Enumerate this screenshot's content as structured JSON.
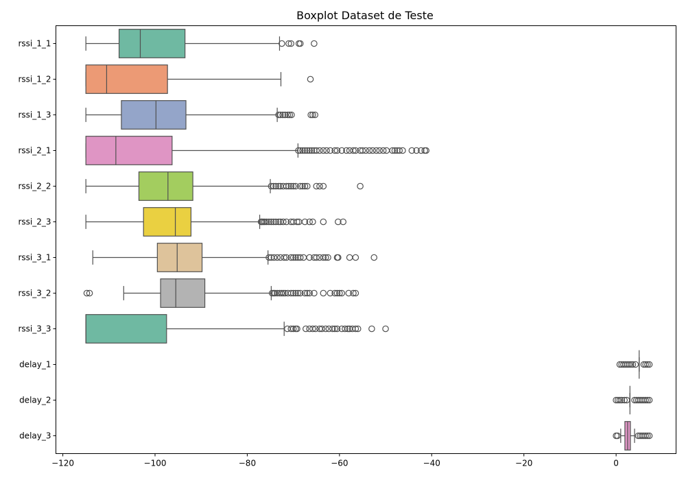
{
  "chart_data": {
    "type": "boxplot",
    "orientation": "horizontal",
    "title": "Boxplot Dataset de Teste",
    "xlabel": "",
    "ylabel": "",
    "xlim": [
      -121.5,
      13
    ],
    "xticks": [
      -120,
      -100,
      -80,
      -60,
      -40,
      -20,
      0
    ],
    "xtick_labels": [
      "−120",
      "−100",
      "−80",
      "−60",
      "−40",
      "−20",
      "0"
    ],
    "grid": false,
    "categories": [
      "rssi_1_1",
      "rssi_1_2",
      "rssi_1_3",
      "rssi_2_1",
      "rssi_2_2",
      "rssi_2_3",
      "rssi_3_1",
      "rssi_3_2",
      "rssi_3_3",
      "delay_1",
      "delay_2",
      "delay_3"
    ],
    "boxes": [
      {
        "name": "rssi_1_1",
        "color": "#6fb9a2",
        "wl": -115,
        "q1": -107.8,
        "med": -103.2,
        "q3": -93.5,
        "wh": -73,
        "fliers": [
          -72.5,
          -71,
          -70.5,
          -68.8,
          -68.5,
          -65.5
        ]
      },
      {
        "name": "rssi_1_2",
        "color": "#ec9a75",
        "wl": -115,
        "q1": -115,
        "med": -110.5,
        "q3": -97.3,
        "wh": -72.7,
        "fliers": [
          -66.3
        ]
      },
      {
        "name": "rssi_1_3",
        "color": "#94a5c9",
        "wl": -115,
        "q1": -107.3,
        "med": -99.8,
        "q3": -93.3,
        "wh": -73.5,
        "fliers": [
          -73.2,
          -72.8,
          -72.3,
          -71.8,
          -71.2,
          -70.8,
          -70.4,
          -66.2,
          -65.8,
          -65.3
        ]
      },
      {
        "name": "rssi_2_1",
        "color": "#df95c4",
        "wl": -115,
        "q1": -115,
        "med": -108.5,
        "q3": -96.3,
        "wh": -69,
        "fliers": [
          -68.9,
          -68.5,
          -68,
          -67.5,
          -67,
          -66.5,
          -66,
          -65.5,
          -65,
          -64.3,
          -63.5,
          -62.8,
          -62,
          -61,
          -60.5,
          -59.5,
          -58.5,
          -57.8,
          -57,
          -56.5,
          -55.5,
          -55,
          -54.3,
          -53.5,
          -52.8,
          -52,
          -51.3,
          -50.5,
          -49.8,
          -48.5,
          -48,
          -47.5,
          -47,
          -46.3,
          -44.3,
          -43.3,
          -42.3,
          -41.5,
          -41.2
        ]
      },
      {
        "name": "rssi_2_2",
        "color": "#a3cd5f",
        "wl": -115,
        "q1": -103.5,
        "med": -97.2,
        "q3": -91.8,
        "wh": -75,
        "fliers": [
          -74.8,
          -74.3,
          -73.8,
          -73.2,
          -72.8,
          -72.2,
          -71.5,
          -71,
          -70.5,
          -70,
          -69.5,
          -68.5,
          -68,
          -67.5,
          -67,
          -65,
          -64.3,
          -63.5,
          -55.5
        ]
      },
      {
        "name": "rssi_2_3",
        "color": "#ead041",
        "wl": -115,
        "q1": -102.5,
        "med": -95.6,
        "q3": -92.2,
        "wh": -77.3,
        "fliers": [
          -77,
          -76.8,
          -76.5,
          -76.2,
          -75.8,
          -75.3,
          -74.8,
          -74.3,
          -73.8,
          -73.2,
          -72.8,
          -72.2,
          -71.5,
          -70.5,
          -70,
          -69.2,
          -68.8,
          -67.5,
          -66.5,
          -65.8,
          -63.5,
          -60.3,
          -59.2
        ]
      },
      {
        "name": "rssi_3_1",
        "color": "#dec39b",
        "wl": -113.5,
        "q1": -99.5,
        "med": -95.2,
        "q3": -89.8,
        "wh": -75.5,
        "fliers": [
          -75.3,
          -74.8,
          -74.2,
          -73.5,
          -72.8,
          -72,
          -71.5,
          -70.5,
          -70,
          -69.5,
          -69,
          -68.5,
          -67.8,
          -66.5,
          -65.5,
          -65,
          -64.3,
          -63.5,
          -63,
          -62.5,
          -60.5,
          -60.3,
          -57.8,
          -56.5,
          -52.5
        ]
      },
      {
        "name": "rssi_3_2",
        "color": "#b3b3b3",
        "wl": -106.8,
        "q1": -98.8,
        "med": -95.5,
        "q3": -89.2,
        "wh": -74.8,
        "fliers": [
          -114.8,
          -114.2,
          -74.6,
          -74.3,
          -74,
          -73.5,
          -73,
          -72.6,
          -72.2,
          -71.8,
          -71.2,
          -70.5,
          -70,
          -69.5,
          -69,
          -68.5,
          -67.5,
          -67,
          -66.5,
          -65.5,
          -63.5,
          -62,
          -61,
          -60.5,
          -60,
          -59.5,
          -58,
          -57,
          -56.5
        ]
      },
      {
        "name": "rssi_3_3",
        "color": "#6fb9a2",
        "wl": -115,
        "q1": -115,
        "med": -115,
        "q3": -97.5,
        "wh": -72,
        "fliers": [
          -71.3,
          -70.5,
          -70,
          -69.5,
          -69.2,
          -67.3,
          -66.5,
          -65.8,
          -65.2,
          -64.3,
          -63.8,
          -63,
          -62.3,
          -61.5,
          -61,
          -60.5,
          -59.5,
          -58.8,
          -58.2,
          -57.8,
          -57.2,
          -56.5,
          -56,
          -53,
          -50
        ]
      },
      {
        "name": "delay_1",
        "color": "#ec9a75",
        "wl": 5,
        "q1": 5,
        "med": 5,
        "q3": 5,
        "wh": 5,
        "fliers": [
          0.8,
          1.2,
          1.6,
          2,
          2.4,
          2.8,
          3.2,
          3.6,
          4.2,
          6,
          6.4,
          6.8,
          7.2
        ]
      },
      {
        "name": "delay_2",
        "color": "#94a5c9",
        "wl": 3,
        "q1": 3,
        "med": 3,
        "q3": 3,
        "wh": 3,
        "fliers": [
          0,
          0.4,
          0.8,
          1.2,
          1.8,
          2.3,
          4,
          4.4,
          4.8,
          5.2,
          5.6,
          6,
          6.4,
          6.8,
          7.2
        ]
      },
      {
        "name": "delay_3",
        "color": "#df95c4",
        "wl": 1,
        "q1": 1.9,
        "med": 2.5,
        "q3": 3.1,
        "wh": 4,
        "fliers": [
          0,
          0.3,
          4.8,
          5.2,
          5.6,
          6,
          6.4,
          6.8,
          7.2
        ]
      }
    ]
  }
}
